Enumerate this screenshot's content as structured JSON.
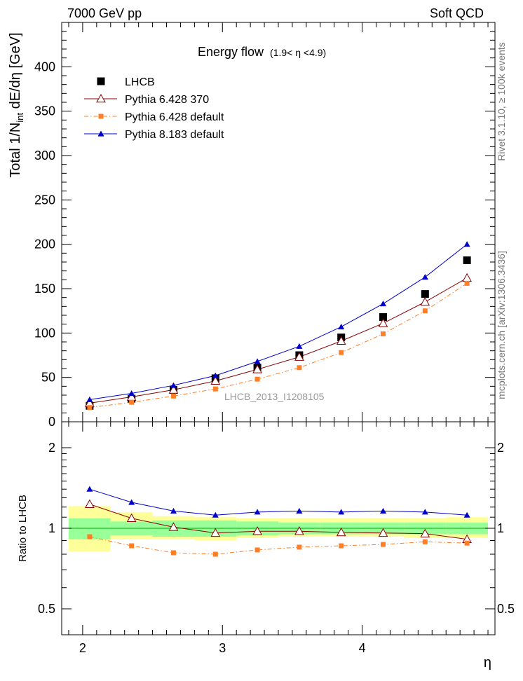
{
  "header": {
    "left": "7000 GeV pp",
    "right": "Soft QCD"
  },
  "side_text": {
    "rivet": "Rivet 3.1.10, ≥ 100k events",
    "mcplots": "mcplots.cern.ch [arXiv:1306.3436]"
  },
  "colors": {
    "lhcb": "#000000",
    "pythia6_370": "#8b0000",
    "pythia6_default": "#ff7f27",
    "pythia8": "#0000cc",
    "band_inner": "#99ff99",
    "band_outer": "#ffff99"
  },
  "chart_data": [
    {
      "type": "scatter",
      "title": "Energy flow",
      "title_note": "(1.9< η <4.9)",
      "ylabel": "Total 1/N_int dE/dη [GeV]",
      "ylabel_parts": {
        "a": "Total 1/N",
        "sub": "int",
        "b": " dE/dη [GeV]"
      },
      "watermark": "LHCB_2013_I1208105",
      "xlim": [
        1.85,
        4.95
      ],
      "ylim": [
        0,
        450
      ],
      "yticks": [
        0,
        50,
        100,
        150,
        200,
        250,
        300,
        350,
        400
      ],
      "ytick_labels": [
        "0",
        "50",
        "100",
        "150",
        "200",
        "250",
        "300",
        "350",
        "400"
      ],
      "legend_position": "top-left",
      "x": [
        2.05,
        2.35,
        2.65,
        2.95,
        3.25,
        3.55,
        3.85,
        4.15,
        4.45,
        4.75
      ],
      "series": [
        {
          "name": "LHCB",
          "key": "lhcb",
          "marker": "square",
          "line": "none",
          "values": [
            18,
            26,
            36,
            49,
            61,
            75,
            95,
            118,
            144,
            182
          ]
        },
        {
          "name": "Pythia 6.428 370",
          "key": "pythia6_370",
          "marker": "open-triangle",
          "line": "solid",
          "values": [
            21,
            28,
            36,
            46,
            59,
            73,
            91,
            111,
            135,
            162
          ]
        },
        {
          "name": "Pythia 6.428 default",
          "key": "pythia6_default",
          "marker": "small-square",
          "line": "dashdot",
          "values": [
            16,
            22,
            29,
            37,
            48,
            61,
            78,
            99,
            125,
            156
          ]
        },
        {
          "name": "Pythia 8.183 default",
          "key": "pythia8",
          "marker": "filled-triangle",
          "line": "solid",
          "values": [
            25,
            32,
            41,
            52,
            68,
            85,
            107,
            133,
            163,
            200
          ]
        }
      ]
    },
    {
      "type": "line",
      "ylabel": "Ratio to LHCB",
      "xlabel": "η",
      "yscale": "log",
      "xlim": [
        1.85,
        4.95
      ],
      "ylim": [
        0.4,
        2.5
      ],
      "xticks": [
        2,
        3,
        4
      ],
      "xtick_labels": [
        "2",
        "3",
        "4"
      ],
      "yticks": [
        0.5,
        1,
        2
      ],
      "ytick_labels": [
        "0.5",
        "1",
        "2"
      ],
      "bands": {
        "bins": [
          [
            1.9,
            2.2
          ],
          [
            2.2,
            2.5
          ],
          [
            2.5,
            2.8
          ],
          [
            2.8,
            3.1
          ],
          [
            3.1,
            3.4
          ],
          [
            3.4,
            3.7
          ],
          [
            3.7,
            4.0
          ],
          [
            4.0,
            4.3
          ],
          [
            4.3,
            4.6
          ],
          [
            4.6,
            4.9
          ]
        ],
        "inner": [
          [
            0.91,
            1.09
          ],
          [
            0.94,
            1.06
          ],
          [
            0.93,
            1.07
          ],
          [
            0.93,
            1.07
          ],
          [
            0.94,
            1.06
          ],
          [
            0.95,
            1.05
          ],
          [
            0.95,
            1.05
          ],
          [
            0.95,
            1.05
          ],
          [
            0.95,
            1.05
          ],
          [
            0.95,
            1.05
          ]
        ],
        "outer": [
          [
            0.82,
            1.21
          ],
          [
            0.91,
            1.15
          ],
          [
            0.91,
            1.11
          ],
          [
            0.9,
            1.1
          ],
          [
            0.92,
            1.09
          ],
          [
            0.93,
            1.09
          ],
          [
            0.93,
            1.09
          ],
          [
            0.93,
            1.09
          ],
          [
            0.92,
            1.09
          ],
          [
            0.92,
            1.1
          ]
        ]
      },
      "series": [
        {
          "name": "Pythia 6.428 370",
          "key": "pythia6_370",
          "values": [
            1.23,
            1.09,
            1.01,
            0.96,
            0.975,
            0.975,
            0.965,
            0.96,
            0.955,
            0.91
          ]
        },
        {
          "name": "Pythia 6.428 default",
          "key": "pythia6_default",
          "values": [
            0.93,
            0.86,
            0.81,
            0.8,
            0.83,
            0.85,
            0.86,
            0.87,
            0.89,
            0.88
          ]
        },
        {
          "name": "Pythia 8.183 default",
          "key": "pythia8",
          "values": [
            1.4,
            1.25,
            1.16,
            1.12,
            1.15,
            1.16,
            1.15,
            1.16,
            1.15,
            1.12
          ]
        }
      ]
    }
  ]
}
